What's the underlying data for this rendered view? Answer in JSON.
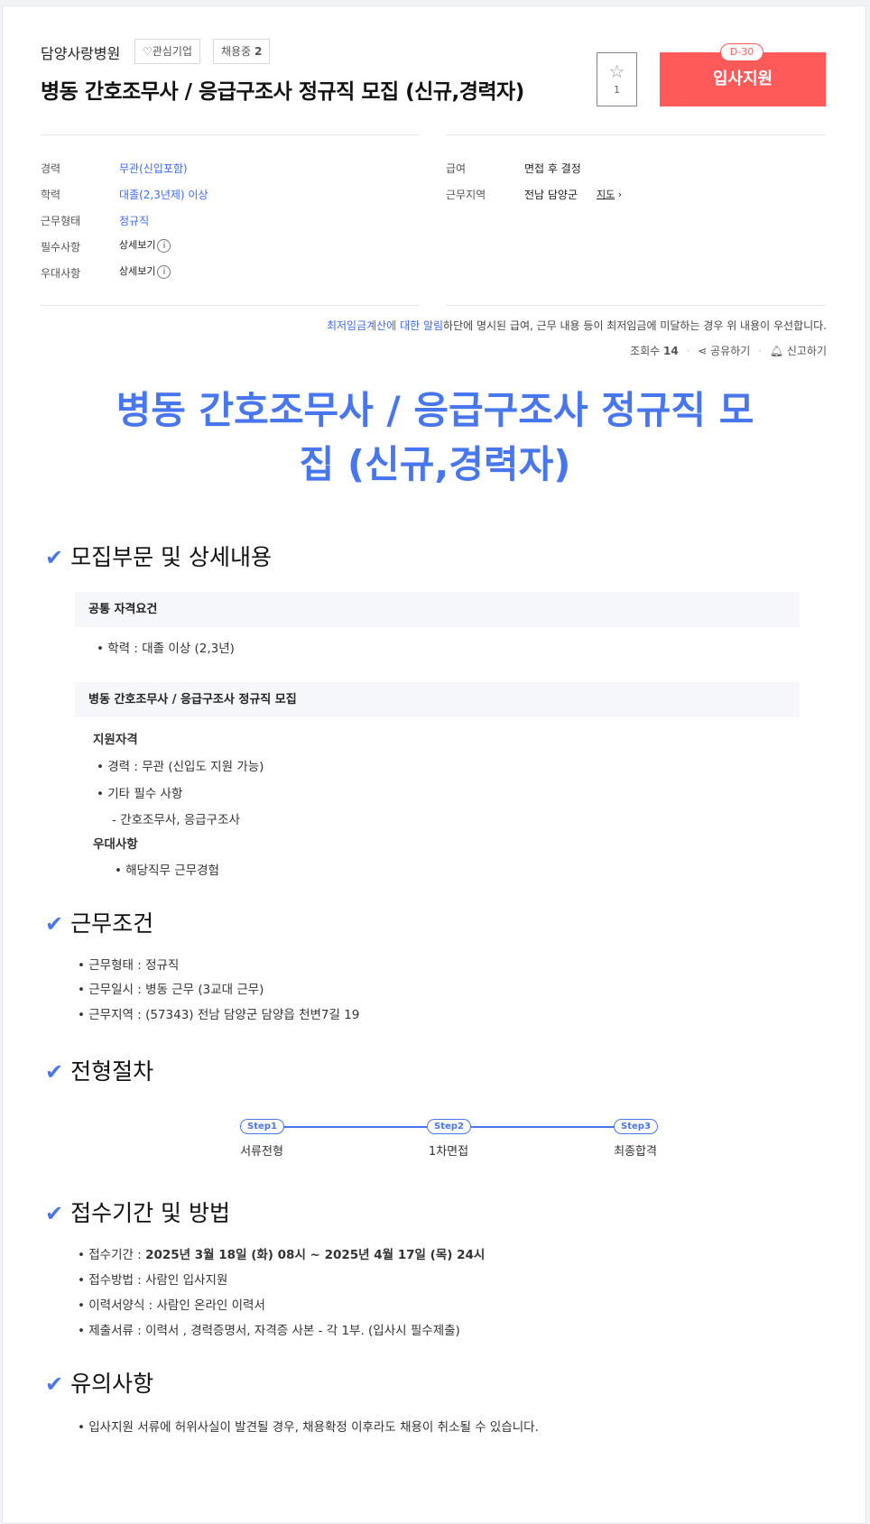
{
  "header": {
    "company": "담양사랑병원",
    "favorite_label": "관심기업",
    "hiring_label": "채용중",
    "hiring_count": "2",
    "title": "병동 간호조무사 / 응급구조사 정규직 모집 (신규,경력자)",
    "star_count": "1",
    "apply_label": "입사지원",
    "dday": "D-30",
    "accent": "#ff5a5a"
  },
  "summary": {
    "left": [
      {
        "label": "경력",
        "value": "무관(신입포함)"
      },
      {
        "label": "학력",
        "value": "대졸(2,3년제) 이상"
      },
      {
        "label": "근무형태",
        "value": "정규직"
      },
      {
        "label": "필수사항",
        "value": "상세보기"
      },
      {
        "label": "우대사항",
        "value": "상세보기"
      }
    ],
    "right": [
      {
        "label": "급여",
        "value": "면접 후 결정"
      },
      {
        "label": "근무지역",
        "value": "전남 담양군",
        "link": "지도"
      }
    ]
  },
  "notice": {
    "link": "최저임금계산에 대한 알림",
    "text": "하단에 명시된 급여, 근무 내용 등이 최저임금에 미달하는 경우 위 내용이 우선합니다."
  },
  "meta": {
    "views_label": "조회수",
    "views": "14",
    "share": "공유하기",
    "report": "신고하기"
  },
  "detail": {
    "title": "병동 간호조무사 / 응급구조사 정규직 모집 (신규,경력자)",
    "accent": "#4876ef",
    "sections": {
      "recruit": {
        "heading": "모집부문 및 상세내용",
        "common_title": "공통 자격요건",
        "common_items": [
          "학력 : 대졸 이상 (2,3년)"
        ],
        "job_title": "병동 간호조무사 / 응급구조사 정규직 모집",
        "qual_label": "지원자격",
        "qual_items": [
          "경력 : 무관 (신입도 지원 가능)",
          "기타 필수 사항",
          "- 간호조무사, 응급구조사"
        ],
        "pref_label": "우대사항",
        "pref_items": [
          "해당직무 근무경험"
        ]
      },
      "conditions": {
        "heading": "근무조건",
        "items": [
          "근무형태 : 정규직",
          "근무일시 : 병동 근무 (3교대 근무)",
          "근무지역 : (57343) 전남 담양군 담양읍 천변7길 19"
        ]
      },
      "process": {
        "heading": "전형절차",
        "steps": [
          {
            "tag": "Step1",
            "label": "서류전형"
          },
          {
            "tag": "Step2",
            "label": "1차면접"
          },
          {
            "tag": "Step3",
            "label": "최종합격"
          }
        ]
      },
      "apply": {
        "heading": "접수기간 및 방법",
        "items": [
          {
            "label": "접수기간 : ",
            "value": "2025년 3월 18일 (화) 08시 ~ 2025년 4월 17일 (목) 24시"
          },
          {
            "label": "접수방법 : ",
            "value": "사람인 입사지원"
          },
          {
            "label": "이력서양식 : ",
            "value": "사람인 온라인 이력서"
          },
          {
            "label": "제출서류 : ",
            "value": "이력서 , 경력증명서, 자격증 사본 - 각 1부. (입사시 필수제출)"
          }
        ]
      },
      "caution": {
        "heading": "유의사항",
        "items": [
          "입사지원 서류에 허위사실이 발견될 경우, 채용확정 이후라도 채용이 취소될 수 있습니다."
        ]
      }
    }
  }
}
